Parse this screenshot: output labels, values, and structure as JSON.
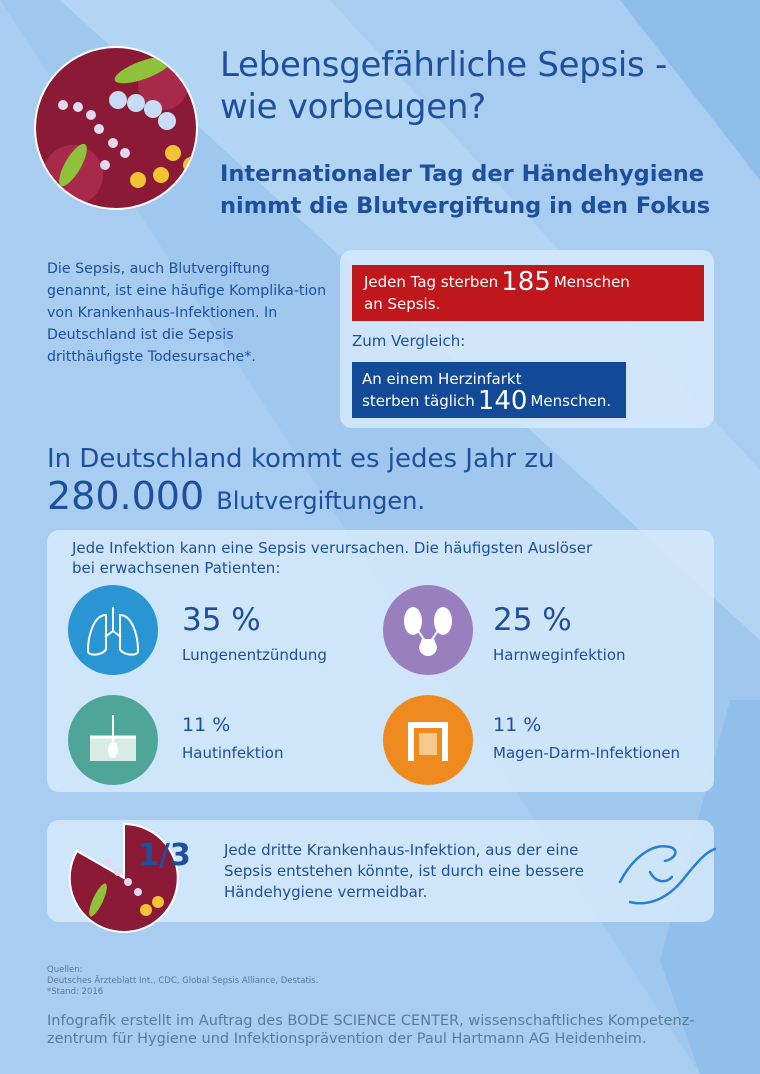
{
  "header": {
    "title_line1": "Lebensgefährliche Sepsis -",
    "title_line2": "wie vorbeugen?",
    "subtitle_line1": "Internationaler Tag der Händehygiene",
    "subtitle_line2": "nimmt die Blutvergiftung in den Fokus"
  },
  "intro": "Die Sepsis, auch Blutvergiftung genannt, ist eine häufige Komplika-tion von Krankenhaus-Infektionen. In Deutschland ist die Sepsis dritthäufigste Todesursache*.",
  "stats": {
    "red_pre": "Jeden Tag sterben",
    "red_num": "185",
    "red_post": "Menschen",
    "red_line2": "an Sepsis.",
    "compare": "Zum Vergleich:",
    "blue_line1": "An einem Herzinfarkt",
    "blue_pre": "sterben täglich",
    "blue_num": "140",
    "blue_post": "Menschen."
  },
  "yearly": {
    "line1": "In Deutschland kommt es jedes Jahr zu",
    "number": "280.000",
    "unit": "Blutvergiftungen."
  },
  "causes": {
    "intro_line1": "Jede Infektion kann eine Sepsis verursachen. Die häufigsten Auslöser",
    "intro_line2": "bei erwachsenen Patienten:",
    "items": [
      {
        "percent": "35 %",
        "label": "Lungenentzündung",
        "icon": "lungs-icon",
        "color": "#2a95d3"
      },
      {
        "percent": "25 %",
        "label": "Harnweginfektion",
        "icon": "kidneys-icon",
        "color": "#9a7fbe"
      },
      {
        "percent": "11 %",
        "label": "Hautinfektion",
        "icon": "skin-icon",
        "color": "#4fa597"
      },
      {
        "percent": "11 %",
        "label": "Magen-Darm-Infektionen",
        "icon": "intestine-icon",
        "color": "#ef8a1f"
      }
    ]
  },
  "hygiene": {
    "fraction": "1/3",
    "line1": "Jede dritte Krankenhaus-Infektion, aus der eine",
    "line2": "Sepsis entstehen könnte, ist durch eine bessere",
    "line3": "Händehygiene vermeidbar."
  },
  "sources": {
    "label": "Quellen:",
    "list": "Deutsches Ärzteblatt Int., CDC, Global Sepsis Alliance, Destatis.",
    "stand": "*Stand: 2016"
  },
  "footer": {
    "line1": "Infografik erstellt im Auftrag des BODE SCIENCE CENTER, wissenschaftliches Kompetenz-",
    "line2": "zentrum für Hygiene und Infektionsprävention der Paul Hartmann AG Heidenheim."
  },
  "colors": {
    "title": "#1d4f9c",
    "red_box": "#c0171d",
    "blue_box": "#124a97",
    "background": "#a8cdf0"
  }
}
